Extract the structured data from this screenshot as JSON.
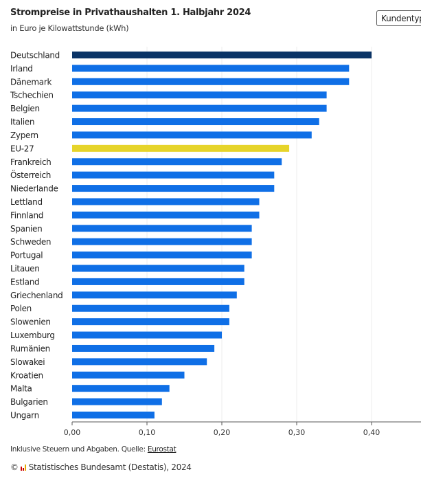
{
  "header": {
    "title": "Strompreise in Privathaushalten 1. Halbjahr 2024",
    "subtitle": "in Euro je Kilowattstunde (kWh)",
    "filter_button": "Kundentyp"
  },
  "colors": {
    "default": "#0f6fe6",
    "highlight_country": "#0b3466",
    "eu": "#e6d42a",
    "axis": "#555555",
    "grid": "#eeeeee"
  },
  "chart_data": {
    "type": "bar",
    "orientation": "horizontal",
    "title": "Strompreise in Privathaushalten 1. Halbjahr 2024",
    "subtitle": "in Euro je Kilowattstunde (kWh)",
    "categories": [
      "Deutschland",
      "Irland",
      "Dänemark",
      "Tschechien",
      "Belgien",
      "Italien",
      "Zypern",
      "EU-27",
      "Frankreich",
      "Österreich",
      "Niederlande",
      "Lettland",
      "Finnland",
      "Spanien",
      "Schweden",
      "Portugal",
      "Litauen",
      "Estland",
      "Griechenland",
      "Polen",
      "Slowenien",
      "Luxemburg",
      "Rumänien",
      "Slowakei",
      "Kroatien",
      "Malta",
      "Bulgarien",
      "Ungarn"
    ],
    "values": [
      0.4,
      0.37,
      0.37,
      0.34,
      0.34,
      0.33,
      0.32,
      0.29,
      0.28,
      0.27,
      0.27,
      0.25,
      0.25,
      0.24,
      0.24,
      0.24,
      0.23,
      0.23,
      0.22,
      0.21,
      0.21,
      0.2,
      0.19,
      0.18,
      0.15,
      0.13,
      0.12,
      0.11
    ],
    "highlight": {
      "Deutschland": "highlight_country",
      "EU-27": "eu"
    },
    "xlim": [
      0,
      0.45
    ],
    "xticks": [
      0,
      0.1,
      0.2,
      0.3,
      0.4
    ],
    "xtick_labels": [
      "0,00",
      "0,10",
      "0,20",
      "0,30",
      "0,40"
    ],
    "grid": true
  },
  "footer": {
    "note": "Inklusive Steuern und Abgaben. Quelle: ",
    "source_link": "Eurostat",
    "copyright": "Statistisches Bundesamt (Destatis), 2024"
  }
}
